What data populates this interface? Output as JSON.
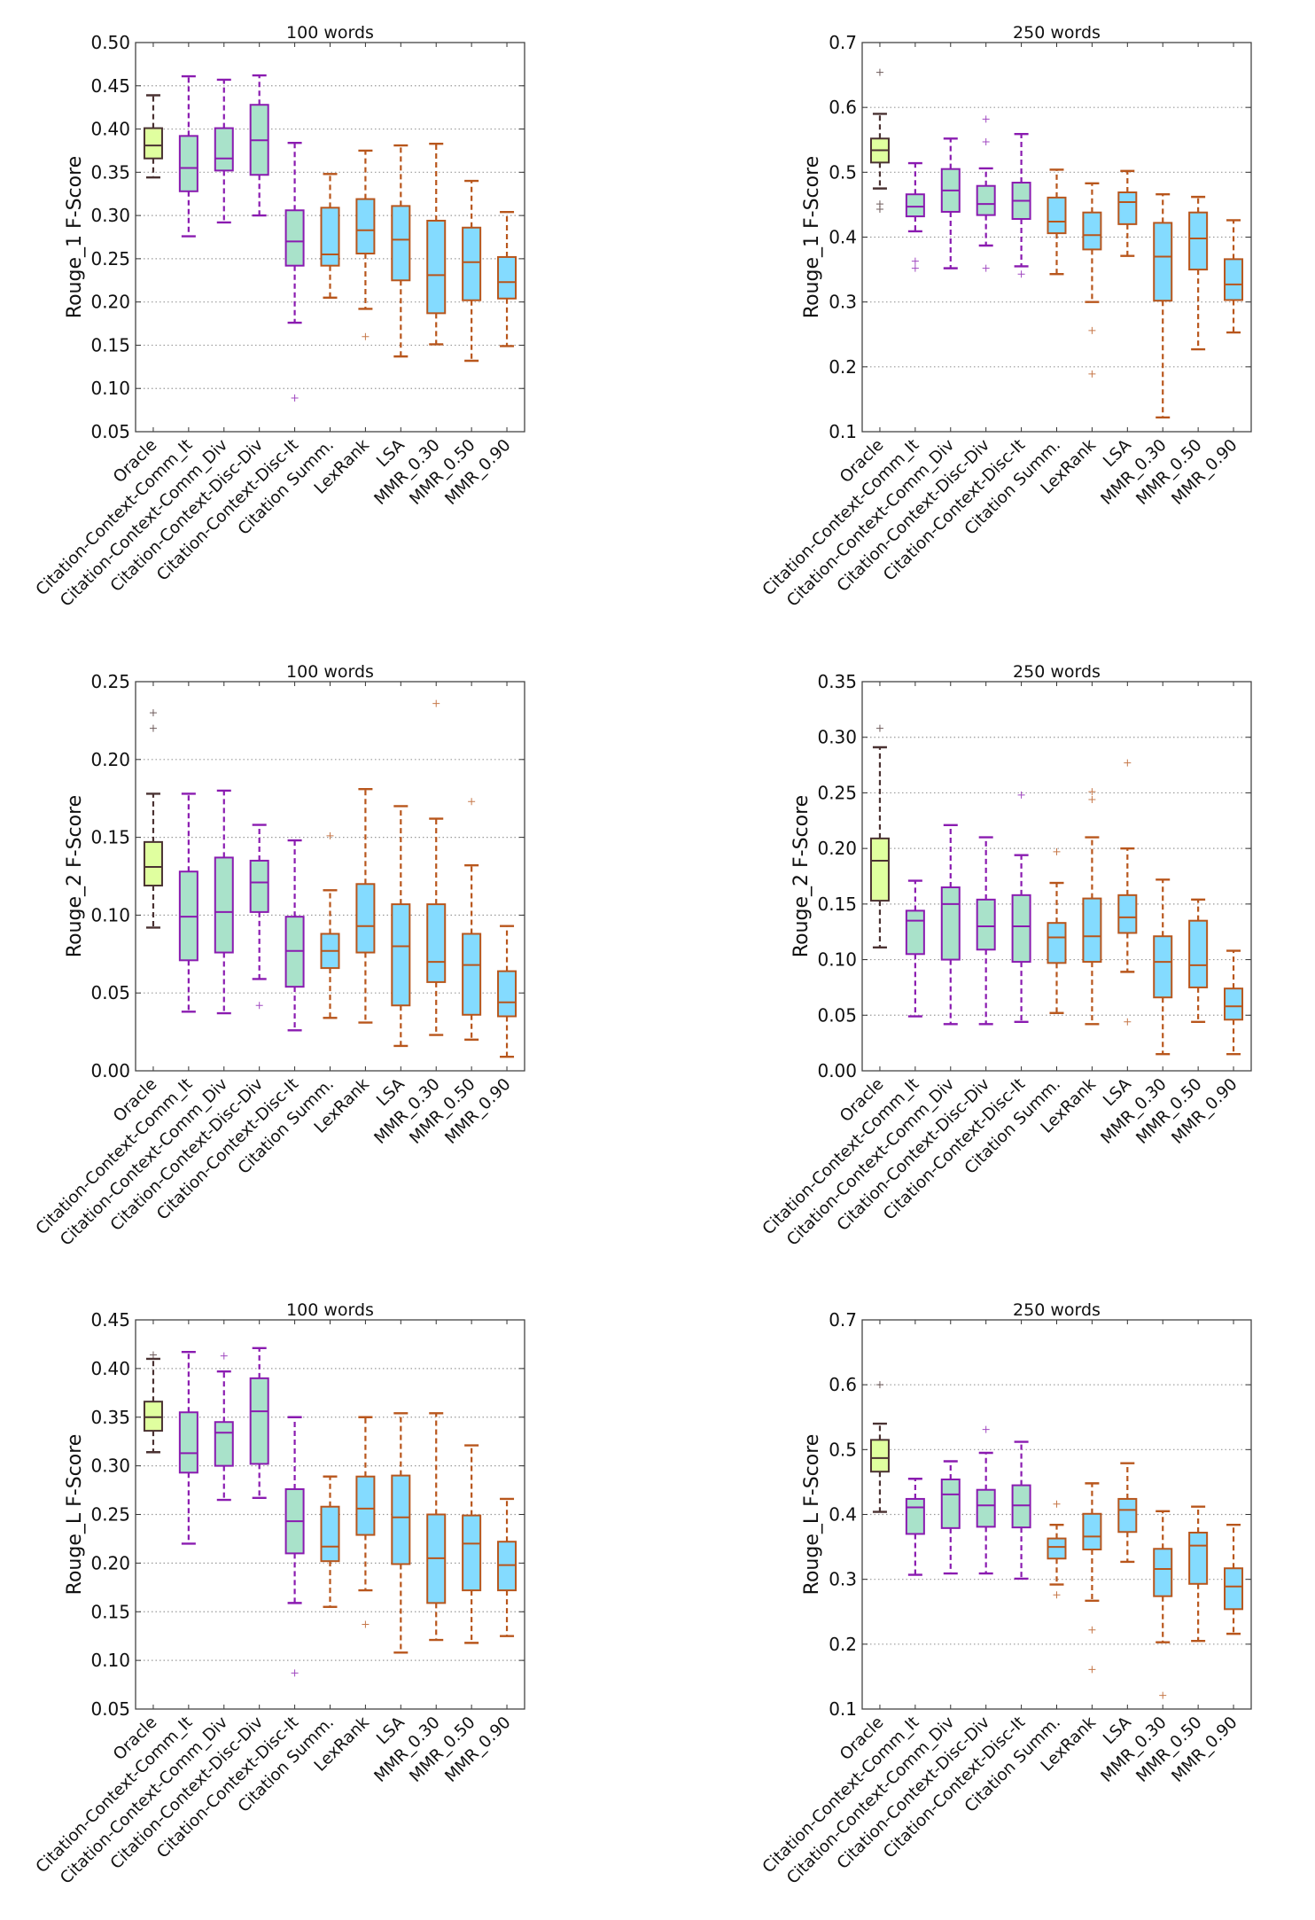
{
  "colors": {
    "oracle": {
      "fill": "#e0ff9f",
      "edge": "#4a3232"
    },
    "context": {
      "fill": "#a9e2ca",
      "edge": "#8a1bb0"
    },
    "baseline": {
      "fill": "#84dbff",
      "edge": "#b8561c"
    }
  },
  "categories": [
    "Oracle",
    "Citation-Context-Comm_It",
    "Citation-Context-Comm_Div",
    "Citation-Context-Disc-Div",
    "Citation-Context-Disc-It",
    "Citation Summ.",
    "LexRank",
    "LSA",
    "MMR_0.30",
    "MMR_0.50",
    "MMR_0.90"
  ],
  "category_groups": [
    "oracle",
    "context",
    "context",
    "context",
    "context",
    "baseline",
    "baseline",
    "baseline",
    "baseline",
    "baseline",
    "baseline"
  ],
  "chart_data": [
    {
      "type": "boxplot",
      "title": "100 words",
      "ylabel": "Rouge_1 F-Score",
      "ylim": [
        0.05,
        0.5
      ],
      "grid": true,
      "yticks": [
        "0.05",
        "0.10",
        "0.15",
        "0.20",
        "0.25",
        "0.30",
        "0.35",
        "0.40",
        "0.45",
        "0.50"
      ],
      "boxes": [
        {
          "whislo": 0.344,
          "q1": 0.366,
          "med": 0.381,
          "q3": 0.401,
          "whishi": 0.439,
          "fliers": []
        },
        {
          "whislo": 0.276,
          "q1": 0.328,
          "med": 0.355,
          "q3": 0.392,
          "whishi": 0.461,
          "fliers": []
        },
        {
          "whislo": 0.292,
          "q1": 0.352,
          "med": 0.366,
          "q3": 0.401,
          "whishi": 0.457,
          "fliers": []
        },
        {
          "whislo": 0.3,
          "q1": 0.347,
          "med": 0.387,
          "q3": 0.428,
          "whishi": 0.462,
          "fliers": []
        },
        {
          "whislo": 0.176,
          "q1": 0.242,
          "med": 0.27,
          "q3": 0.306,
          "whishi": 0.384,
          "fliers": [
            0.089
          ]
        },
        {
          "whislo": 0.205,
          "q1": 0.242,
          "med": 0.255,
          "q3": 0.309,
          "whishi": 0.348,
          "fliers": []
        },
        {
          "whislo": 0.192,
          "q1": 0.256,
          "med": 0.283,
          "q3": 0.319,
          "whishi": 0.375,
          "fliers": [
            0.16
          ]
        },
        {
          "whislo": 0.137,
          "q1": 0.225,
          "med": 0.272,
          "q3": 0.311,
          "whishi": 0.381,
          "fliers": []
        },
        {
          "whislo": 0.151,
          "q1": 0.187,
          "med": 0.231,
          "q3": 0.294,
          "whishi": 0.383,
          "fliers": []
        },
        {
          "whislo": 0.132,
          "q1": 0.202,
          "med": 0.246,
          "q3": 0.286,
          "whishi": 0.34,
          "fliers": []
        },
        {
          "whislo": 0.149,
          "q1": 0.204,
          "med": 0.223,
          "q3": 0.252,
          "whishi": 0.304,
          "fliers": []
        }
      ]
    },
    {
      "type": "boxplot",
      "title": "250 words",
      "ylabel": "Rouge_1 F-Score",
      "ylim": [
        0.1,
        0.7
      ],
      "grid": true,
      "yticks": [
        "0.1",
        "0.2",
        "0.3",
        "0.4",
        "0.5",
        "0.6",
        "0.7"
      ],
      "boxes": [
        {
          "whislo": 0.475,
          "q1": 0.515,
          "med": 0.534,
          "q3": 0.552,
          "whishi": 0.59,
          "fliers": [
            0.654,
            0.451,
            0.443
          ]
        },
        {
          "whislo": 0.409,
          "q1": 0.432,
          "med": 0.447,
          "q3": 0.466,
          "whishi": 0.514,
          "fliers": [
            0.363,
            0.352
          ]
        },
        {
          "whislo": 0.352,
          "q1": 0.439,
          "med": 0.472,
          "q3": 0.505,
          "whishi": 0.552,
          "fliers": []
        },
        {
          "whislo": 0.387,
          "q1": 0.434,
          "med": 0.451,
          "q3": 0.479,
          "whishi": 0.506,
          "fliers": [
            0.582,
            0.547,
            0.352
          ]
        },
        {
          "whislo": 0.355,
          "q1": 0.428,
          "med": 0.456,
          "q3": 0.484,
          "whishi": 0.559,
          "fliers": [
            0.343
          ]
        },
        {
          "whislo": 0.343,
          "q1": 0.406,
          "med": 0.424,
          "q3": 0.461,
          "whishi": 0.504,
          "fliers": []
        },
        {
          "whislo": 0.3,
          "q1": 0.381,
          "med": 0.403,
          "q3": 0.438,
          "whishi": 0.483,
          "fliers": [
            0.256,
            0.189
          ]
        },
        {
          "whislo": 0.371,
          "q1": 0.42,
          "med": 0.454,
          "q3": 0.469,
          "whishi": 0.502,
          "fliers": []
        },
        {
          "whislo": 0.122,
          "q1": 0.302,
          "med": 0.37,
          "q3": 0.422,
          "whishi": 0.466,
          "fliers": []
        },
        {
          "whislo": 0.227,
          "q1": 0.35,
          "med": 0.398,
          "q3": 0.438,
          "whishi": 0.462,
          "fliers": []
        },
        {
          "whislo": 0.253,
          "q1": 0.303,
          "med": 0.327,
          "q3": 0.366,
          "whishi": 0.426,
          "fliers": []
        }
      ]
    },
    {
      "type": "boxplot",
      "title": "100 words",
      "ylabel": "Rouge_2 F-Score",
      "ylim": [
        0.0,
        0.25
      ],
      "grid": true,
      "yticks": [
        "0.00",
        "0.05",
        "0.10",
        "0.15",
        "0.20",
        "0.25"
      ],
      "boxes": [
        {
          "whislo": 0.092,
          "q1": 0.119,
          "med": 0.131,
          "q3": 0.147,
          "whishi": 0.178,
          "fliers": [
            0.23,
            0.22
          ]
        },
        {
          "whislo": 0.038,
          "q1": 0.071,
          "med": 0.099,
          "q3": 0.128,
          "whishi": 0.178,
          "fliers": []
        },
        {
          "whislo": 0.037,
          "q1": 0.076,
          "med": 0.102,
          "q3": 0.137,
          "whishi": 0.18,
          "fliers": []
        },
        {
          "whislo": 0.059,
          "q1": 0.102,
          "med": 0.121,
          "q3": 0.135,
          "whishi": 0.158,
          "fliers": [
            0.042
          ]
        },
        {
          "whislo": 0.026,
          "q1": 0.054,
          "med": 0.077,
          "q3": 0.099,
          "whishi": 0.148,
          "fliers": []
        },
        {
          "whislo": 0.034,
          "q1": 0.066,
          "med": 0.077,
          "q3": 0.088,
          "whishi": 0.116,
          "fliers": [
            0.151
          ]
        },
        {
          "whislo": 0.031,
          "q1": 0.076,
          "med": 0.093,
          "q3": 0.12,
          "whishi": 0.181,
          "fliers": []
        },
        {
          "whislo": 0.016,
          "q1": 0.042,
          "med": 0.08,
          "q3": 0.107,
          "whishi": 0.17,
          "fliers": []
        },
        {
          "whislo": 0.023,
          "q1": 0.057,
          "med": 0.07,
          "q3": 0.107,
          "whishi": 0.162,
          "fliers": [
            0.236
          ]
        },
        {
          "whislo": 0.02,
          "q1": 0.036,
          "med": 0.068,
          "q3": 0.088,
          "whishi": 0.132,
          "fliers": [
            0.173
          ]
        },
        {
          "whislo": 0.009,
          "q1": 0.035,
          "med": 0.044,
          "q3": 0.064,
          "whishi": 0.093,
          "fliers": []
        }
      ]
    },
    {
      "type": "boxplot",
      "title": "250 words",
      "ylabel": "Rouge_2 F-Score",
      "ylim": [
        0.0,
        0.35
      ],
      "grid": true,
      "yticks": [
        "0.00",
        "0.05",
        "0.10",
        "0.15",
        "0.20",
        "0.25",
        "0.30",
        "0.35"
      ],
      "boxes": [
        {
          "whislo": 0.111,
          "q1": 0.153,
          "med": 0.189,
          "q3": 0.209,
          "whishi": 0.291,
          "fliers": [
            0.308
          ]
        },
        {
          "whislo": 0.049,
          "q1": 0.105,
          "med": 0.135,
          "q3": 0.144,
          "whishi": 0.171,
          "fliers": []
        },
        {
          "whislo": 0.042,
          "q1": 0.1,
          "med": 0.15,
          "q3": 0.165,
          "whishi": 0.221,
          "fliers": []
        },
        {
          "whislo": 0.042,
          "q1": 0.109,
          "med": 0.13,
          "q3": 0.154,
          "whishi": 0.21,
          "fliers": []
        },
        {
          "whislo": 0.044,
          "q1": 0.098,
          "med": 0.13,
          "q3": 0.158,
          "whishi": 0.194,
          "fliers": [
            0.248
          ]
        },
        {
          "whislo": 0.052,
          "q1": 0.097,
          "med": 0.12,
          "q3": 0.133,
          "whishi": 0.169,
          "fliers": [
            0.197
          ]
        },
        {
          "whislo": 0.042,
          "q1": 0.098,
          "med": 0.121,
          "q3": 0.155,
          "whishi": 0.21,
          "fliers": [
            0.251,
            0.244
          ]
        },
        {
          "whislo": 0.089,
          "q1": 0.124,
          "med": 0.138,
          "q3": 0.158,
          "whishi": 0.2,
          "fliers": [
            0.277,
            0.044
          ]
        },
        {
          "whislo": 0.015,
          "q1": 0.066,
          "med": 0.098,
          "q3": 0.121,
          "whishi": 0.172,
          "fliers": []
        },
        {
          "whislo": 0.044,
          "q1": 0.075,
          "med": 0.095,
          "q3": 0.135,
          "whishi": 0.154,
          "fliers": []
        },
        {
          "whislo": 0.015,
          "q1": 0.046,
          "med": 0.058,
          "q3": 0.074,
          "whishi": 0.108,
          "fliers": []
        }
      ]
    },
    {
      "type": "boxplot",
      "title": "100 words",
      "ylabel": "Rouge_L F-Score",
      "ylim": [
        0.05,
        0.45
      ],
      "grid": true,
      "yticks": [
        "0.05",
        "0.10",
        "0.15",
        "0.20",
        "0.25",
        "0.30",
        "0.35",
        "0.40",
        "0.45"
      ],
      "boxes": [
        {
          "whislo": 0.314,
          "q1": 0.336,
          "med": 0.35,
          "q3": 0.366,
          "whishi": 0.41,
          "fliers": [
            0.414
          ]
        },
        {
          "whislo": 0.22,
          "q1": 0.293,
          "med": 0.313,
          "q3": 0.355,
          "whishi": 0.417,
          "fliers": []
        },
        {
          "whislo": 0.265,
          "q1": 0.3,
          "med": 0.334,
          "q3": 0.345,
          "whishi": 0.397,
          "fliers": [
            0.413
          ]
        },
        {
          "whislo": 0.267,
          "q1": 0.302,
          "med": 0.356,
          "q3": 0.39,
          "whishi": 0.421,
          "fliers": []
        },
        {
          "whislo": 0.159,
          "q1": 0.21,
          "med": 0.243,
          "q3": 0.276,
          "whishi": 0.35,
          "fliers": [
            0.087
          ]
        },
        {
          "whislo": 0.155,
          "q1": 0.202,
          "med": 0.217,
          "q3": 0.258,
          "whishi": 0.289,
          "fliers": []
        },
        {
          "whislo": 0.172,
          "q1": 0.229,
          "med": 0.256,
          "q3": 0.289,
          "whishi": 0.35,
          "fliers": [
            0.137
          ]
        },
        {
          "whislo": 0.108,
          "q1": 0.199,
          "med": 0.247,
          "q3": 0.29,
          "whishi": 0.354,
          "fliers": []
        },
        {
          "whislo": 0.121,
          "q1": 0.159,
          "med": 0.205,
          "q3": 0.25,
          "whishi": 0.354,
          "fliers": []
        },
        {
          "whislo": 0.118,
          "q1": 0.172,
          "med": 0.22,
          "q3": 0.249,
          "whishi": 0.321,
          "fliers": []
        },
        {
          "whislo": 0.125,
          "q1": 0.172,
          "med": 0.198,
          "q3": 0.222,
          "whishi": 0.266,
          "fliers": []
        }
      ]
    },
    {
      "type": "boxplot",
      "title": "250 words",
      "ylabel": "Rouge_L F-Score",
      "ylim": [
        0.1,
        0.7
      ],
      "grid": true,
      "yticks": [
        "0.1",
        "0.2",
        "0.3",
        "0.4",
        "0.5",
        "0.6",
        "0.7"
      ],
      "boxes": [
        {
          "whislo": 0.404,
          "q1": 0.466,
          "med": 0.487,
          "q3": 0.515,
          "whishi": 0.54,
          "fliers": [
            0.6
          ]
        },
        {
          "whislo": 0.307,
          "q1": 0.37,
          "med": 0.411,
          "q3": 0.424,
          "whishi": 0.455,
          "fliers": []
        },
        {
          "whislo": 0.309,
          "q1": 0.379,
          "med": 0.431,
          "q3": 0.454,
          "whishi": 0.482,
          "fliers": []
        },
        {
          "whislo": 0.309,
          "q1": 0.381,
          "med": 0.414,
          "q3": 0.438,
          "whishi": 0.495,
          "fliers": [
            0.531
          ]
        },
        {
          "whislo": 0.301,
          "q1": 0.38,
          "med": 0.414,
          "q3": 0.445,
          "whishi": 0.512,
          "fliers": []
        },
        {
          "whislo": 0.292,
          "q1": 0.332,
          "med": 0.35,
          "q3": 0.363,
          "whishi": 0.384,
          "fliers": [
            0.416,
            0.276
          ]
        },
        {
          "whislo": 0.267,
          "q1": 0.346,
          "med": 0.366,
          "q3": 0.401,
          "whishi": 0.448,
          "fliers": [
            0.222,
            0.161
          ]
        },
        {
          "whislo": 0.327,
          "q1": 0.373,
          "med": 0.407,
          "q3": 0.424,
          "whishi": 0.479,
          "fliers": []
        },
        {
          "whislo": 0.203,
          "q1": 0.274,
          "med": 0.316,
          "q3": 0.347,
          "whishi": 0.405,
          "fliers": [
            0.121
          ]
        },
        {
          "whislo": 0.205,
          "q1": 0.293,
          "med": 0.352,
          "q3": 0.372,
          "whishi": 0.412,
          "fliers": []
        },
        {
          "whislo": 0.216,
          "q1": 0.254,
          "med": 0.289,
          "q3": 0.317,
          "whishi": 0.384,
          "fliers": []
        }
      ]
    }
  ]
}
